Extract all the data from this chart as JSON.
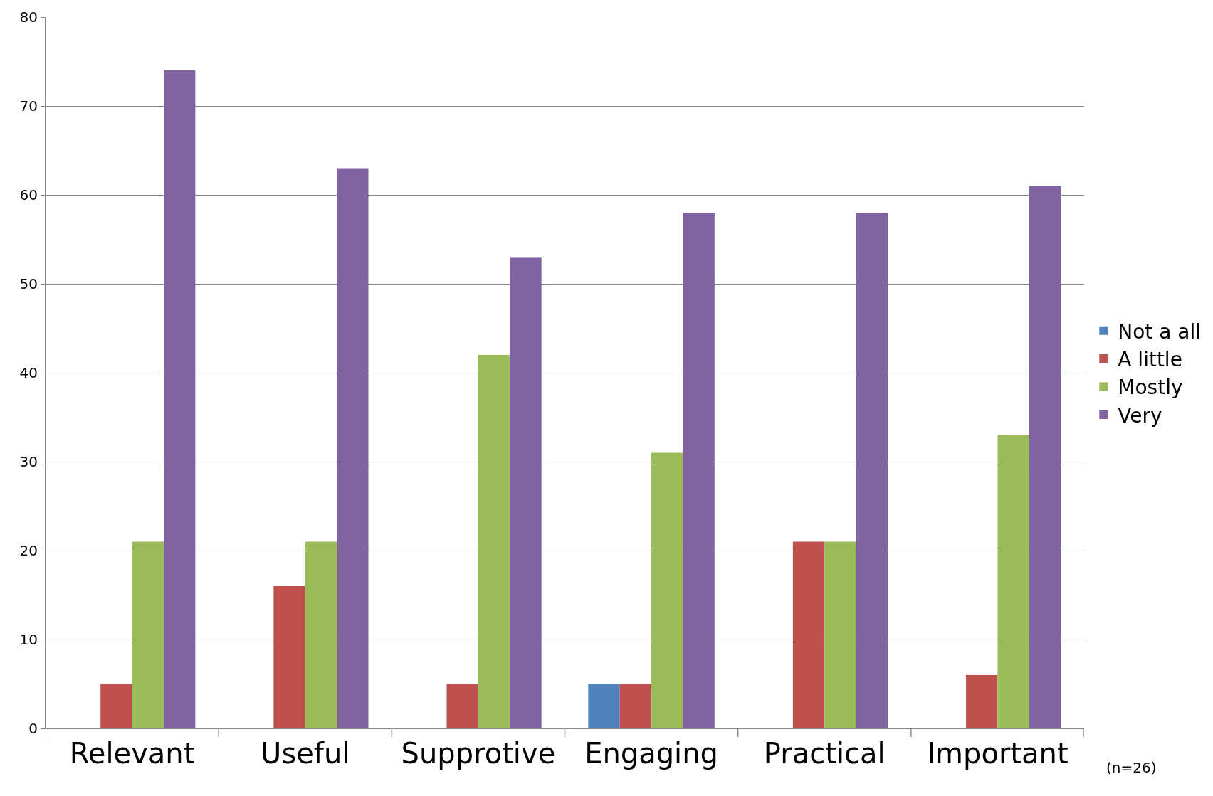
{
  "chart_data": {
    "type": "bar",
    "categories": [
      "Relevant",
      "Useful",
      "Supprotive",
      "Engaging",
      "Practical",
      "Important"
    ],
    "series": [
      {
        "name": "Not a all",
        "color": "#4f81bd",
        "values": [
          0,
          0,
          0,
          5,
          0,
          0
        ]
      },
      {
        "name": "A little",
        "color": "#c0504d",
        "values": [
          5,
          16,
          5,
          5,
          21,
          6
        ]
      },
      {
        "name": "Mostly",
        "color": "#9bbb59",
        "values": [
          21,
          21,
          42,
          31,
          21,
          33
        ]
      },
      {
        "name": "Very",
        "color": "#8064a2",
        "values": [
          74,
          63,
          53,
          58,
          58,
          61
        ]
      }
    ],
    "ylim": [
      0,
      80
    ],
    "yticks": [
      0,
      10,
      20,
      30,
      40,
      50,
      60,
      70,
      80
    ],
    "grid": "y",
    "legend": "right",
    "annotations": [
      "(n=26)"
    ]
  }
}
